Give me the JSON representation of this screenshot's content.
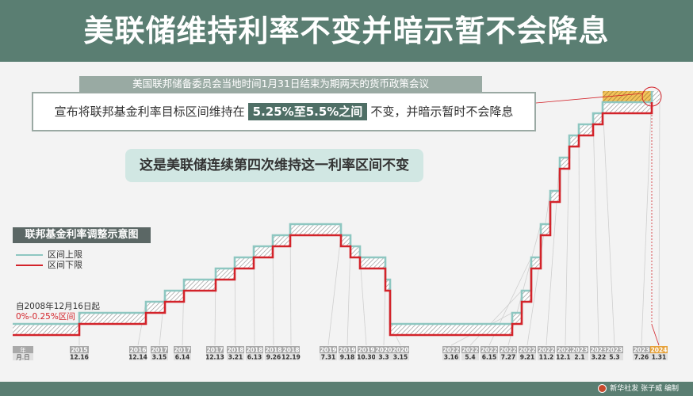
{
  "header": {
    "title": "美联储维持利率不变并暗示暂不会降息"
  },
  "meeting": {
    "text": "美国联邦储备委员会当地时间1月31日结束为期两天的货币政策会议"
  },
  "decision": {
    "prefix": "宣布将联邦基金利率目标区间维持在",
    "range": "5.25%至5.5%之间",
    "suffix": "不变，并暗示暂时不会降息"
  },
  "note": {
    "text": "这是美联储连续第四次维持这一利率区间不变"
  },
  "legend": {
    "title": "联邦基金利率调整示意图",
    "upper": "区间上限",
    "lower": "区间下限",
    "upper_color": "#8ec7c1",
    "lower_color": "#d3232a"
  },
  "initial": {
    "since": "自2008年12月16日起",
    "range": "0%-0.25%区间"
  },
  "axis": {
    "year_label": "年",
    "date_label": "月.日"
  },
  "credit": {
    "text": "新华社发 张子威 编制",
    "icon": "xinhua-logo-icon"
  },
  "chart_data": {
    "type": "step-range",
    "ylim": [
      0,
      5.5
    ],
    "series": [
      {
        "name": "区间上限",
        "color": "#8ec7c1"
      },
      {
        "name": "区间下限",
        "color": "#d3232a"
      }
    ],
    "initial": {
      "lower": 0,
      "upper": 0.25
    },
    "changes": [
      {
        "year": "2015",
        "date": "12.16",
        "lower": 0.25,
        "upper": 0.5
      },
      {
        "year": "2016",
        "date": "12.14",
        "lower": 0.5,
        "upper": 0.75
      },
      {
        "year": "2017",
        "date": "3.15",
        "lower": 0.75,
        "upper": 1.0
      },
      {
        "year": "2017",
        "date": "6.14",
        "lower": 1.0,
        "upper": 1.25
      },
      {
        "year": "2017",
        "date": "12.13",
        "lower": 1.25,
        "upper": 1.5
      },
      {
        "year": "2018",
        "date": "3.21",
        "lower": 1.5,
        "upper": 1.75
      },
      {
        "year": "2018",
        "date": "6.13",
        "lower": 1.75,
        "upper": 2.0
      },
      {
        "year": "2018",
        "date": "9.26",
        "lower": 2.0,
        "upper": 2.25
      },
      {
        "year": "2018",
        "date": "12.19",
        "lower": 2.25,
        "upper": 2.5
      },
      {
        "year": "2019",
        "date": "7.31",
        "lower": 2.0,
        "upper": 2.25
      },
      {
        "year": "2019",
        "date": "9.18",
        "lower": 1.75,
        "upper": 2.0
      },
      {
        "year": "2019",
        "date": "10.30",
        "lower": 1.5,
        "upper": 1.75
      },
      {
        "year": "2020",
        "date": "3.3",
        "lower": 1.0,
        "upper": 1.25
      },
      {
        "year": "2020",
        "date": "3.15",
        "lower": 0,
        "upper": 0.25
      },
      {
        "year": "2022",
        "date": "3.16",
        "lower": 0.25,
        "upper": 0.5
      },
      {
        "year": "2022",
        "date": "5.4",
        "lower": 0.75,
        "upper": 1.0
      },
      {
        "year": "2022",
        "date": "6.15",
        "lower": 1.5,
        "upper": 1.75
      },
      {
        "year": "2022",
        "date": "7.27",
        "lower": 2.25,
        "upper": 2.5
      },
      {
        "year": "2022",
        "date": "9.21",
        "lower": 3.0,
        "upper": 3.25
      },
      {
        "year": "2022",
        "date": "11.2",
        "lower": 3.75,
        "upper": 4.0
      },
      {
        "year": "2022",
        "date": "12.14",
        "lower": 4.25,
        "upper": 4.5
      },
      {
        "year": "2023",
        "date": "2.1",
        "lower": 4.5,
        "upper": 4.75
      },
      {
        "year": "2023",
        "date": "3.22",
        "lower": 4.75,
        "upper": 5.0
      },
      {
        "year": "2023",
        "date": "5.3",
        "lower": 5.0,
        "upper": 5.25
      },
      {
        "year": "2023",
        "date": "7.26",
        "lower": 5.25,
        "upper": 5.5
      },
      {
        "year": "2024",
        "date": "1.31",
        "lower": 5.25,
        "upper": 5.5
      }
    ]
  }
}
